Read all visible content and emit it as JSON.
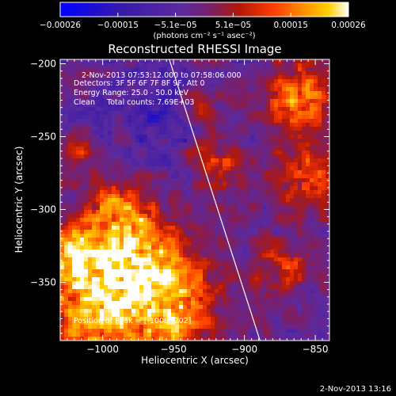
{
  "chart_data": {
    "type": "heatmap",
    "title": "Reconstructed RHESSI Image",
    "xlabel": "Heliocentric X (arcsec)",
    "ylabel": "Heliocentric Y (arcsec)",
    "xlim": [
      -1030,
      -840
    ],
    "ylim": [
      -390,
      -197
    ],
    "x_ticks": [
      -1000,
      -950,
      -900,
      -850
    ],
    "y_ticks": [
      -200,
      -250,
      -300,
      -350
    ],
    "x_tick_labels": [
      "−1000",
      "−950",
      "−900",
      "−850"
    ],
    "y_tick_labels": [
      "−200",
      "−250",
      "−300",
      "−350"
    ],
    "colorbar": {
      "range": [
        -0.00026,
        0.00026
      ],
      "tick_labels": [
        "−0.00026",
        "−0.00015",
        "−5.1e−05",
        "5.1e−05",
        "0.00015",
        "0.00026"
      ],
      "unit_label": "(photons cm⁻² s⁻¹ asec⁻²)"
    },
    "colormap": [
      "#0000ff",
      "#3a1aa8",
      "#5a2aa0",
      "#7a1f6a",
      "#b0180a",
      "#ff3c00",
      "#ff8c00",
      "#ffd000",
      "#ffffff"
    ],
    "limb_line": [
      [
        -953,
        -197
      ],
      [
        -889,
        -390
      ]
    ],
    "peak": [
      -1008,
      -202
    ],
    "annotations": [
      "2-Nov-2013 07:53:12.000 to 07:58:06.000",
      "Detectors: 3F 5F 6F 7F 8F 9F, Att 0",
      "Energy Range: 25.0 - 50.0 keV",
      "Clean     Total counts: 7.69E+03"
    ],
    "peak_label": "Position of Peak = [-1008,-202]"
  },
  "footer": {
    "timestamp": "2-Nov-2013 13:16"
  }
}
